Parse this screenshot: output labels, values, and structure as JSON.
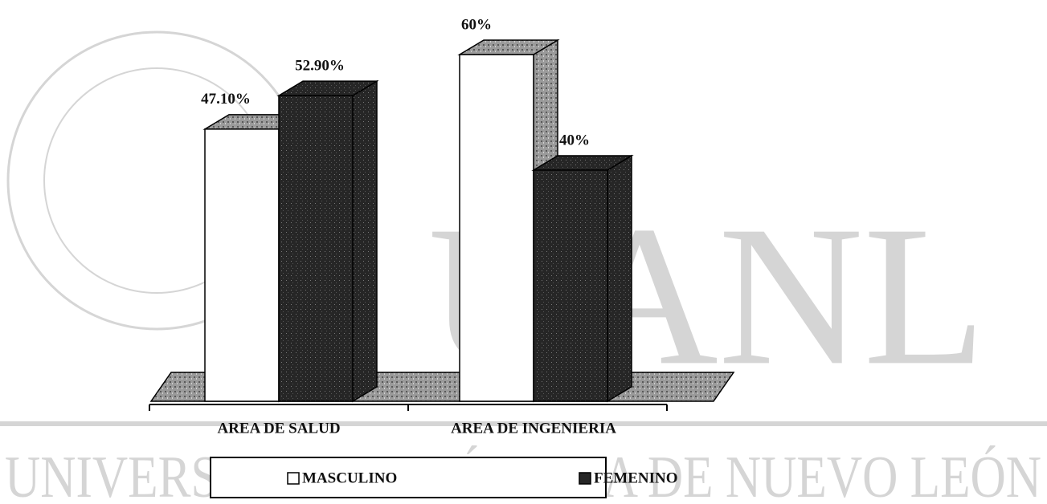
{
  "chart_data": {
    "type": "bar3d",
    "categories": [
      "AREA DE SALUD",
      "AREA DE INGENIERIA"
    ],
    "series": [
      {
        "name": "MASCULINO",
        "color": "#ffffff",
        "values": [
          47.1,
          60
        ],
        "value_labels": [
          "47.10%",
          "60%"
        ]
      },
      {
        "name": "FEMENINO",
        "color": "#262626",
        "values": [
          52.9,
          40
        ],
        "value_labels": [
          "52.90%",
          "40%"
        ]
      }
    ],
    "legend": "bottom",
    "watermark": [
      "UANL",
      "UNIVERSIDAD AUTÓNOMA DE NUEVO LEÓN"
    ]
  }
}
